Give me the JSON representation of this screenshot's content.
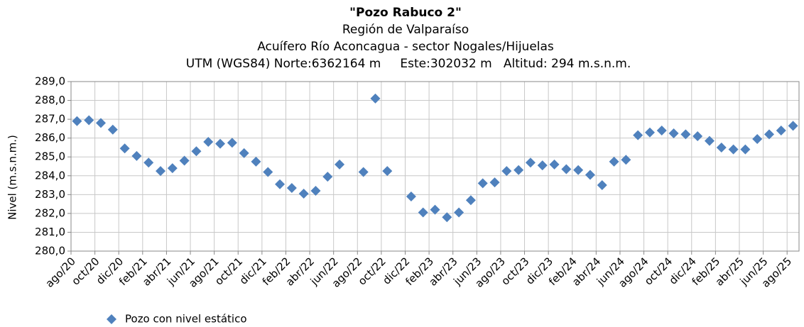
{
  "chart_data": {
    "type": "scatter",
    "title": "\"Pozo Rabuco 2\"",
    "subtitles": [
      "Región de Valparaíso",
      "Acuífero Río Aconcagua - sector Nogales/Hijuelas",
      "UTM (WGS84) Norte:6362164 m     Este:302032 m   Altitud: 294 m.s.n.m."
    ],
    "y_label": "Nivel (m.s.n.m.)",
    "grid": true,
    "legend": "bottom-left",
    "xlim": [
      "2020-08",
      "2025-09"
    ],
    "xticks": [
      {
        "value": "2020-08",
        "label": "ago/20"
      },
      {
        "value": "2020-10",
        "label": "oct/20"
      },
      {
        "value": "2020-12",
        "label": "dic/20"
      },
      {
        "value": "2021-02",
        "label": "feb/21"
      },
      {
        "value": "2021-04",
        "label": "abr/21"
      },
      {
        "value": "2021-06",
        "label": "jun/21"
      },
      {
        "value": "2021-08",
        "label": "ago/21"
      },
      {
        "value": "2021-10",
        "label": "oct/21"
      },
      {
        "value": "2021-12",
        "label": "dic/21"
      },
      {
        "value": "2022-02",
        "label": "feb/22"
      },
      {
        "value": "2022-04",
        "label": "abr/22"
      },
      {
        "value": "2022-06",
        "label": "jun/22"
      },
      {
        "value": "2022-08",
        "label": "ago/22"
      },
      {
        "value": "2022-10",
        "label": "oct/22"
      },
      {
        "value": "2022-12",
        "label": "dic/22"
      },
      {
        "value": "2023-02",
        "label": "feb/23"
      },
      {
        "value": "2023-04",
        "label": "abr/23"
      },
      {
        "value": "2023-06",
        "label": "jun/23"
      },
      {
        "value": "2023-08",
        "label": "ago/23"
      },
      {
        "value": "2023-10",
        "label": "oct/23"
      },
      {
        "value": "2023-12",
        "label": "dic/23"
      },
      {
        "value": "2024-02",
        "label": "feb/24"
      },
      {
        "value": "2024-04",
        "label": "abr/24"
      },
      {
        "value": "2024-06",
        "label": "jun/24"
      },
      {
        "value": "2024-08",
        "label": "ago/24"
      },
      {
        "value": "2024-10",
        "label": "oct/24"
      },
      {
        "value": "2024-12",
        "label": "dic/24"
      },
      {
        "value": "2025-02",
        "label": "feb/25"
      },
      {
        "value": "2025-04",
        "label": "abr/25"
      },
      {
        "value": "2025-06",
        "label": "jun/25"
      },
      {
        "value": "2025-08",
        "label": "ago/25"
      }
    ],
    "ylim": [
      280,
      289
    ],
    "yticks": [
      {
        "value": 280,
        "label": "280,0"
      },
      {
        "value": 281,
        "label": "281,0"
      },
      {
        "value": 282,
        "label": "282,0"
      },
      {
        "value": 283,
        "label": "283,0"
      },
      {
        "value": 284,
        "label": "284,0"
      },
      {
        "value": 285,
        "label": "285,0"
      },
      {
        "value": 286,
        "label": "286,0"
      },
      {
        "value": 287,
        "label": "287,0"
      },
      {
        "value": 288,
        "label": "288,0"
      },
      {
        "value": 289,
        "label": "289,0"
      }
    ],
    "series": [
      {
        "name": "Pozo con nivel estático",
        "color": "#4f81bd",
        "x": [
          "2020-08",
          "2020-09",
          "2020-10",
          "2020-11",
          "2020-12",
          "2021-01",
          "2021-02",
          "2021-03",
          "2021-04",
          "2021-05",
          "2021-06",
          "2021-07",
          "2021-08",
          "2021-09",
          "2021-10",
          "2021-11",
          "2021-12",
          "2022-01",
          "2022-02",
          "2022-03",
          "2022-04",
          "2022-05",
          "2022-06",
          "2022-08",
          "2022-09",
          "2022-10",
          "2022-12",
          "2023-01",
          "2023-02",
          "2023-03",
          "2023-04",
          "2023-05",
          "2023-06",
          "2023-07",
          "2023-08",
          "2023-09",
          "2023-10",
          "2023-11",
          "2023-12",
          "2024-01",
          "2024-02",
          "2024-03",
          "2024-04",
          "2024-05",
          "2024-06",
          "2024-07",
          "2024-08",
          "2024-09",
          "2024-10",
          "2024-11",
          "2024-12",
          "2025-01",
          "2025-02",
          "2025-03",
          "2025-04",
          "2025-05",
          "2025-06",
          "2025-07",
          "2025-08"
        ],
        "values": [
          286.9,
          286.95,
          286.8,
          286.45,
          285.45,
          285.05,
          284.7,
          284.25,
          284.4,
          284.8,
          285.3,
          285.8,
          285.7,
          285.75,
          285.2,
          284.75,
          284.2,
          283.55,
          283.35,
          283.05,
          283.2,
          283.95,
          284.6,
          284.2,
          288.1,
          284.25,
          282.9,
          282.05,
          282.2,
          281.8,
          282.05,
          282.7,
          283.6,
          283.65,
          284.25,
          284.3,
          284.7,
          284.55,
          284.6,
          284.35,
          284.3,
          284.05,
          283.5,
          284.75,
          284.85,
          286.15,
          286.3,
          286.4,
          286.25,
          286.2,
          286.1,
          285.85,
          285.5,
          285.4,
          285.4,
          285.95,
          286.2,
          286.4,
          286.65
        ]
      }
    ]
  }
}
